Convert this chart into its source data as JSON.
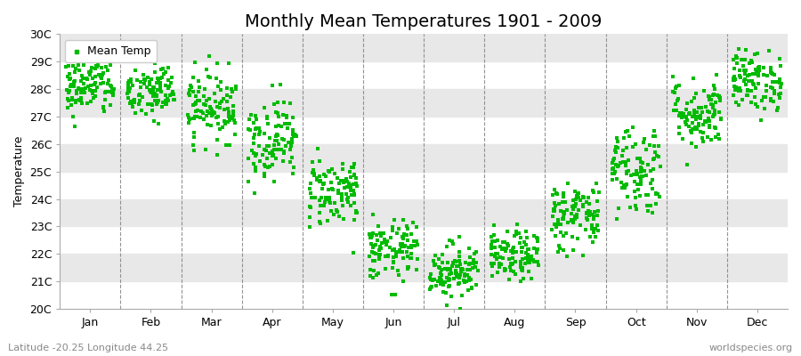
{
  "title": "Monthly Mean Temperatures 1901 - 2009",
  "ylabel": "Temperature",
  "subtitle_left": "Latitude -20.25 Longitude 44.25",
  "subtitle_right": "worldspecies.org",
  "legend_label": "Mean Temp",
  "ylim": [
    20,
    30
  ],
  "yticks": [
    20,
    21,
    22,
    23,
    24,
    25,
    26,
    27,
    28,
    29,
    30
  ],
  "ytick_labels": [
    "20C",
    "21C",
    "22C",
    "23C",
    "24C",
    "25C",
    "26C",
    "27C",
    "28C",
    "29C",
    "30C"
  ],
  "months": [
    "Jan",
    "Feb",
    "Mar",
    "Apr",
    "May",
    "Jun",
    "Jul",
    "Aug",
    "Sep",
    "Oct",
    "Nov",
    "Dec"
  ],
  "monthly_means": [
    28.1,
    27.9,
    27.4,
    26.2,
    24.3,
    22.1,
    21.4,
    21.9,
    23.4,
    25.1,
    27.1,
    28.3
  ],
  "monthly_std": [
    0.55,
    0.55,
    0.65,
    0.75,
    0.65,
    0.55,
    0.5,
    0.45,
    0.65,
    0.85,
    0.65,
    0.55
  ],
  "n_years": 109,
  "dot_color": "#00bb00",
  "background_color": "#ffffff",
  "band_color": "#e8e8e8",
  "title_fontsize": 14,
  "axis_fontsize": 9,
  "legend_fontsize": 9,
  "marker": "s",
  "marker_size": 4
}
